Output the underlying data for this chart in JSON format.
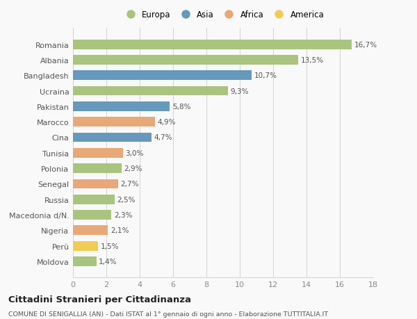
{
  "countries": [
    "Romania",
    "Albania",
    "Bangladesh",
    "Ucraina",
    "Pakistan",
    "Marocco",
    "Cina",
    "Tunisia",
    "Polonia",
    "Senegal",
    "Russia",
    "Macedonia d/N.",
    "Nigeria",
    "Perù",
    "Moldova"
  ],
  "values": [
    16.7,
    13.5,
    10.7,
    9.3,
    5.8,
    4.9,
    4.7,
    3.0,
    2.9,
    2.7,
    2.5,
    2.3,
    2.1,
    1.5,
    1.4
  ],
  "labels": [
    "16,7%",
    "13,5%",
    "10,7%",
    "9,3%",
    "5,8%",
    "4,9%",
    "4,7%",
    "3,0%",
    "2,9%",
    "2,7%",
    "2,5%",
    "2,3%",
    "2,1%",
    "1,5%",
    "1,4%"
  ],
  "continents": [
    "Europa",
    "Europa",
    "Asia",
    "Europa",
    "Asia",
    "Africa",
    "Asia",
    "Africa",
    "Europa",
    "Africa",
    "Europa",
    "Europa",
    "Africa",
    "America",
    "Europa"
  ],
  "colors": {
    "Europa": "#a8c47e",
    "Asia": "#6699bb",
    "Africa": "#e8a878",
    "America": "#f0cc55"
  },
  "legend_order": [
    "Europa",
    "Asia",
    "Africa",
    "America"
  ],
  "title": "Cittadini Stranieri per Cittadinanza",
  "subtitle": "COMUNE DI SENIGALLIA (AN) - Dati ISTAT al 1° gennaio di ogni anno - Elaborazione TUTTITALIA.IT",
  "xlim": [
    0,
    18
  ],
  "xticks": [
    0,
    2,
    4,
    6,
    8,
    10,
    12,
    14,
    16,
    18
  ],
  "bg_color": "#f9f9f9",
  "grid_color": "#cccccc"
}
